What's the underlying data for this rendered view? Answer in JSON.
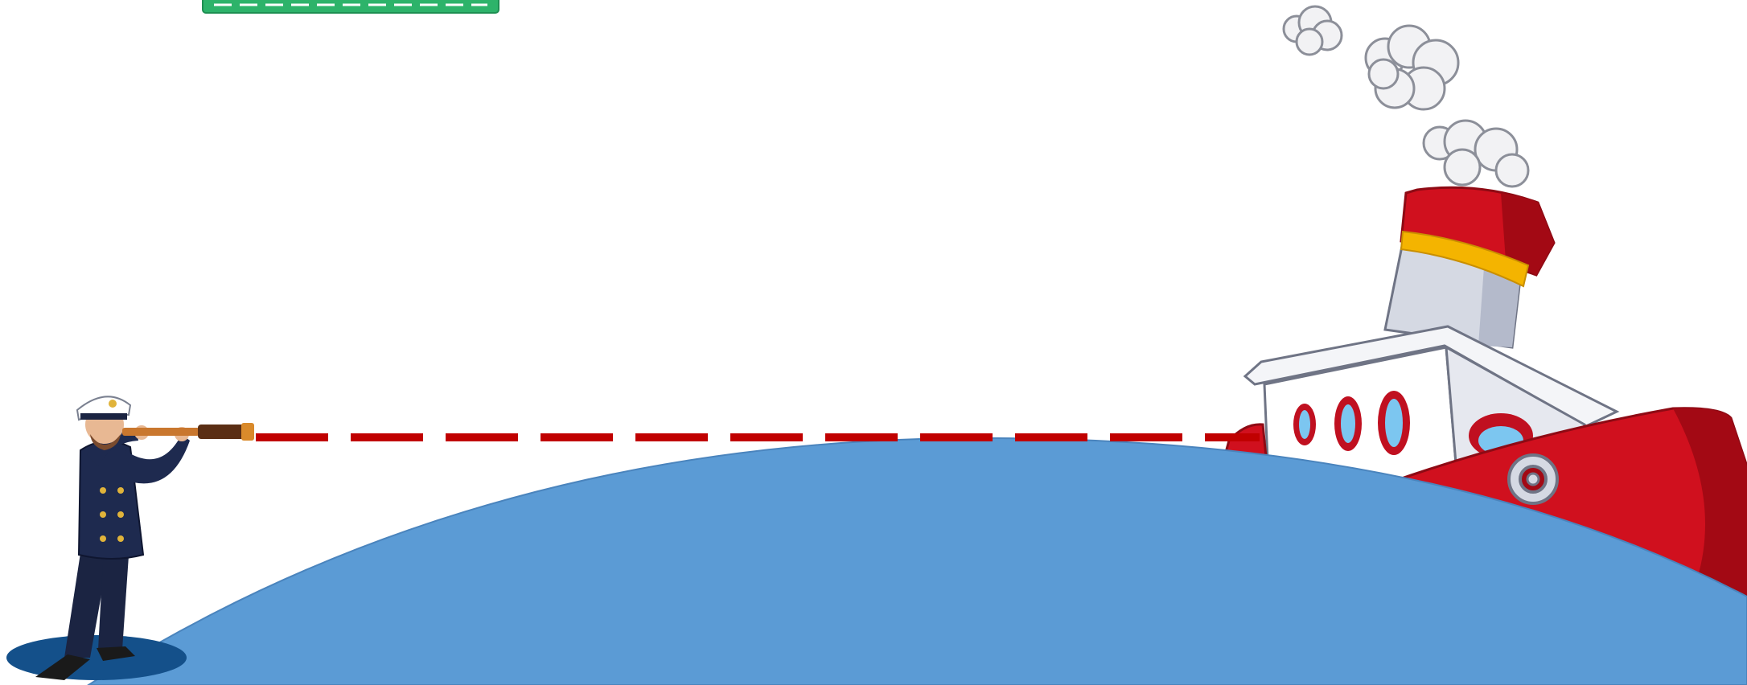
{
  "slide": {
    "title": ""
  },
  "scene": {
    "elements": [
      "green-tag-shape",
      "captain-with-spyglass",
      "line-of-sight",
      "earth-curvature",
      "steamship",
      "smoke-clouds"
    ]
  },
  "colors": {
    "sea": "#5B9BD5",
    "sea_edge": "#4A84BD",
    "line_of_sight": "#C00000",
    "green_tag": "#2DB36A",
    "ship_red": "#D0101E",
    "ship_dark_red": "#A30914",
    "funnel_band": "#F4B400",
    "captain_navy": "#1B2442",
    "shadow": "#14508A"
  },
  "icons": {
    "captain": "captain-icon",
    "spyglass": "spyglass-icon",
    "ship": "ship-icon",
    "anchor": "anchor-icon",
    "porthole": "porthole-icon",
    "smoke": "smoke-icon"
  }
}
